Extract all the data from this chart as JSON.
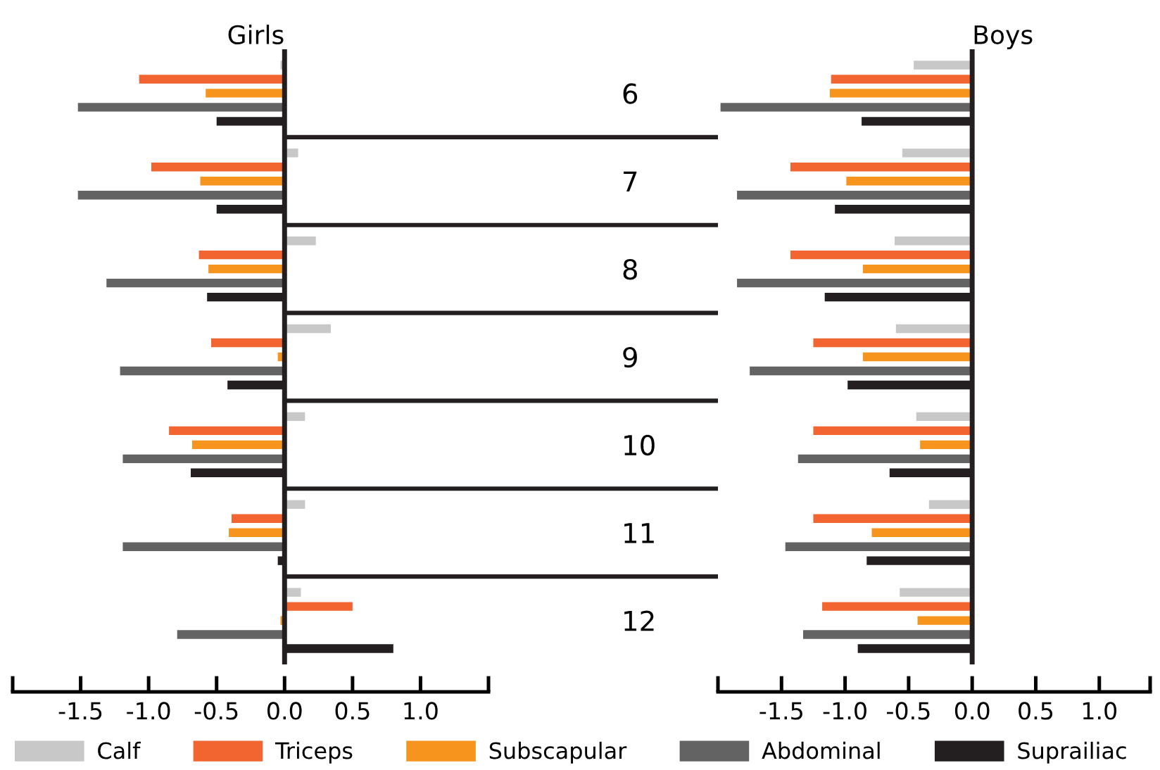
{
  "chart_data": [
    {
      "type": "bar",
      "orientation": "horizontal",
      "title": "Girls",
      "categories": [
        "6",
        "7",
        "8",
        "9",
        "10",
        "11",
        "12"
      ],
      "series": [
        {
          "name": "Calf",
          "color": "#c8c8c8",
          "values": [
            -0.03,
            0.1,
            0.23,
            0.34,
            0.15,
            0.15,
            0.12
          ]
        },
        {
          "name": "Triceps",
          "color": "#f26531",
          "values": [
            -1.07,
            -0.98,
            -0.63,
            -0.54,
            -0.85,
            -0.39,
            0.5
          ]
        },
        {
          "name": "Subscapular",
          "color": "#f7941d",
          "values": [
            -0.58,
            -0.62,
            -0.56,
            -0.05,
            -0.68,
            -0.41,
            -0.03
          ]
        },
        {
          "name": "Abdominal",
          "color": "#636363",
          "values": [
            -1.52,
            -1.52,
            -1.31,
            -1.21,
            -1.19,
            -1.19,
            -0.79
          ]
        },
        {
          "name": "Suprailiac",
          "color": "#231f20",
          "values": [
            -0.5,
            -0.5,
            -0.57,
            -0.42,
            -0.69,
            -0.05,
            0.8
          ]
        }
      ],
      "xlim": [
        -2.0,
        1.5
      ],
      "xticks": [
        {
          "value": -2.0,
          "label": null
        },
        -1.5,
        {
          "value": -1.0,
          "label": "-1.0"
        },
        -0.5,
        {
          "value": 0.0,
          "label": "0.0"
        },
        0.5,
        {
          "value": 1.0,
          "label": "1.0"
        },
        {
          "value": 1.5,
          "label": null
        }
      ],
      "ref_lines": [
        {
          "axis": "x",
          "value": 0
        }
      ],
      "grid": false,
      "legend": "bottom"
    },
    {
      "type": "bar",
      "orientation": "horizontal",
      "title": "Boys",
      "categories": [
        "6",
        "7",
        "8",
        "9",
        "10",
        "11",
        "12"
      ],
      "series": [
        {
          "color": "#c8c8c8",
          "values": [
            -0.46,
            -0.55,
            -0.61,
            -0.6,
            -0.44,
            -0.34,
            -0.57
          ]
        },
        {
          "color": "#f26531",
          "values": [
            -1.11,
            -1.43,
            -1.43,
            -1.25,
            -1.25,
            -1.25,
            -1.18
          ]
        },
        {
          "color": "#f7941d",
          "values": [
            -1.12,
            -0.99,
            -0.86,
            -0.86,
            -0.41,
            -0.79,
            -0.43
          ]
        },
        {
          "color": "#636363",
          "values": [
            -1.98,
            -1.85,
            -1.85,
            -1.75,
            -1.37,
            -1.47,
            -1.33
          ]
        },
        {
          "color": "#231f20",
          "values": [
            -0.87,
            -1.08,
            -1.16,
            -0.98,
            -0.65,
            -0.83,
            -0.9
          ]
        }
      ],
      "xlim": [
        -2.0,
        1.4
      ],
      "xticks": [
        {
          "value": -2.0,
          "label": null
        },
        -1.5,
        {
          "value": -1.0,
          "label": "-1.0"
        },
        -0.5,
        {
          "value": 0.0,
          "label": "0.0"
        },
        0.5,
        {
          "value": 1.0,
          "label": "1.0"
        },
        {
          "value": 1.4,
          "label": null
        }
      ],
      "ref_lines": [
        {
          "axis": "x",
          "value": 0
        }
      ],
      "grid": false,
      "tick_labels": "x"
    }
  ]
}
